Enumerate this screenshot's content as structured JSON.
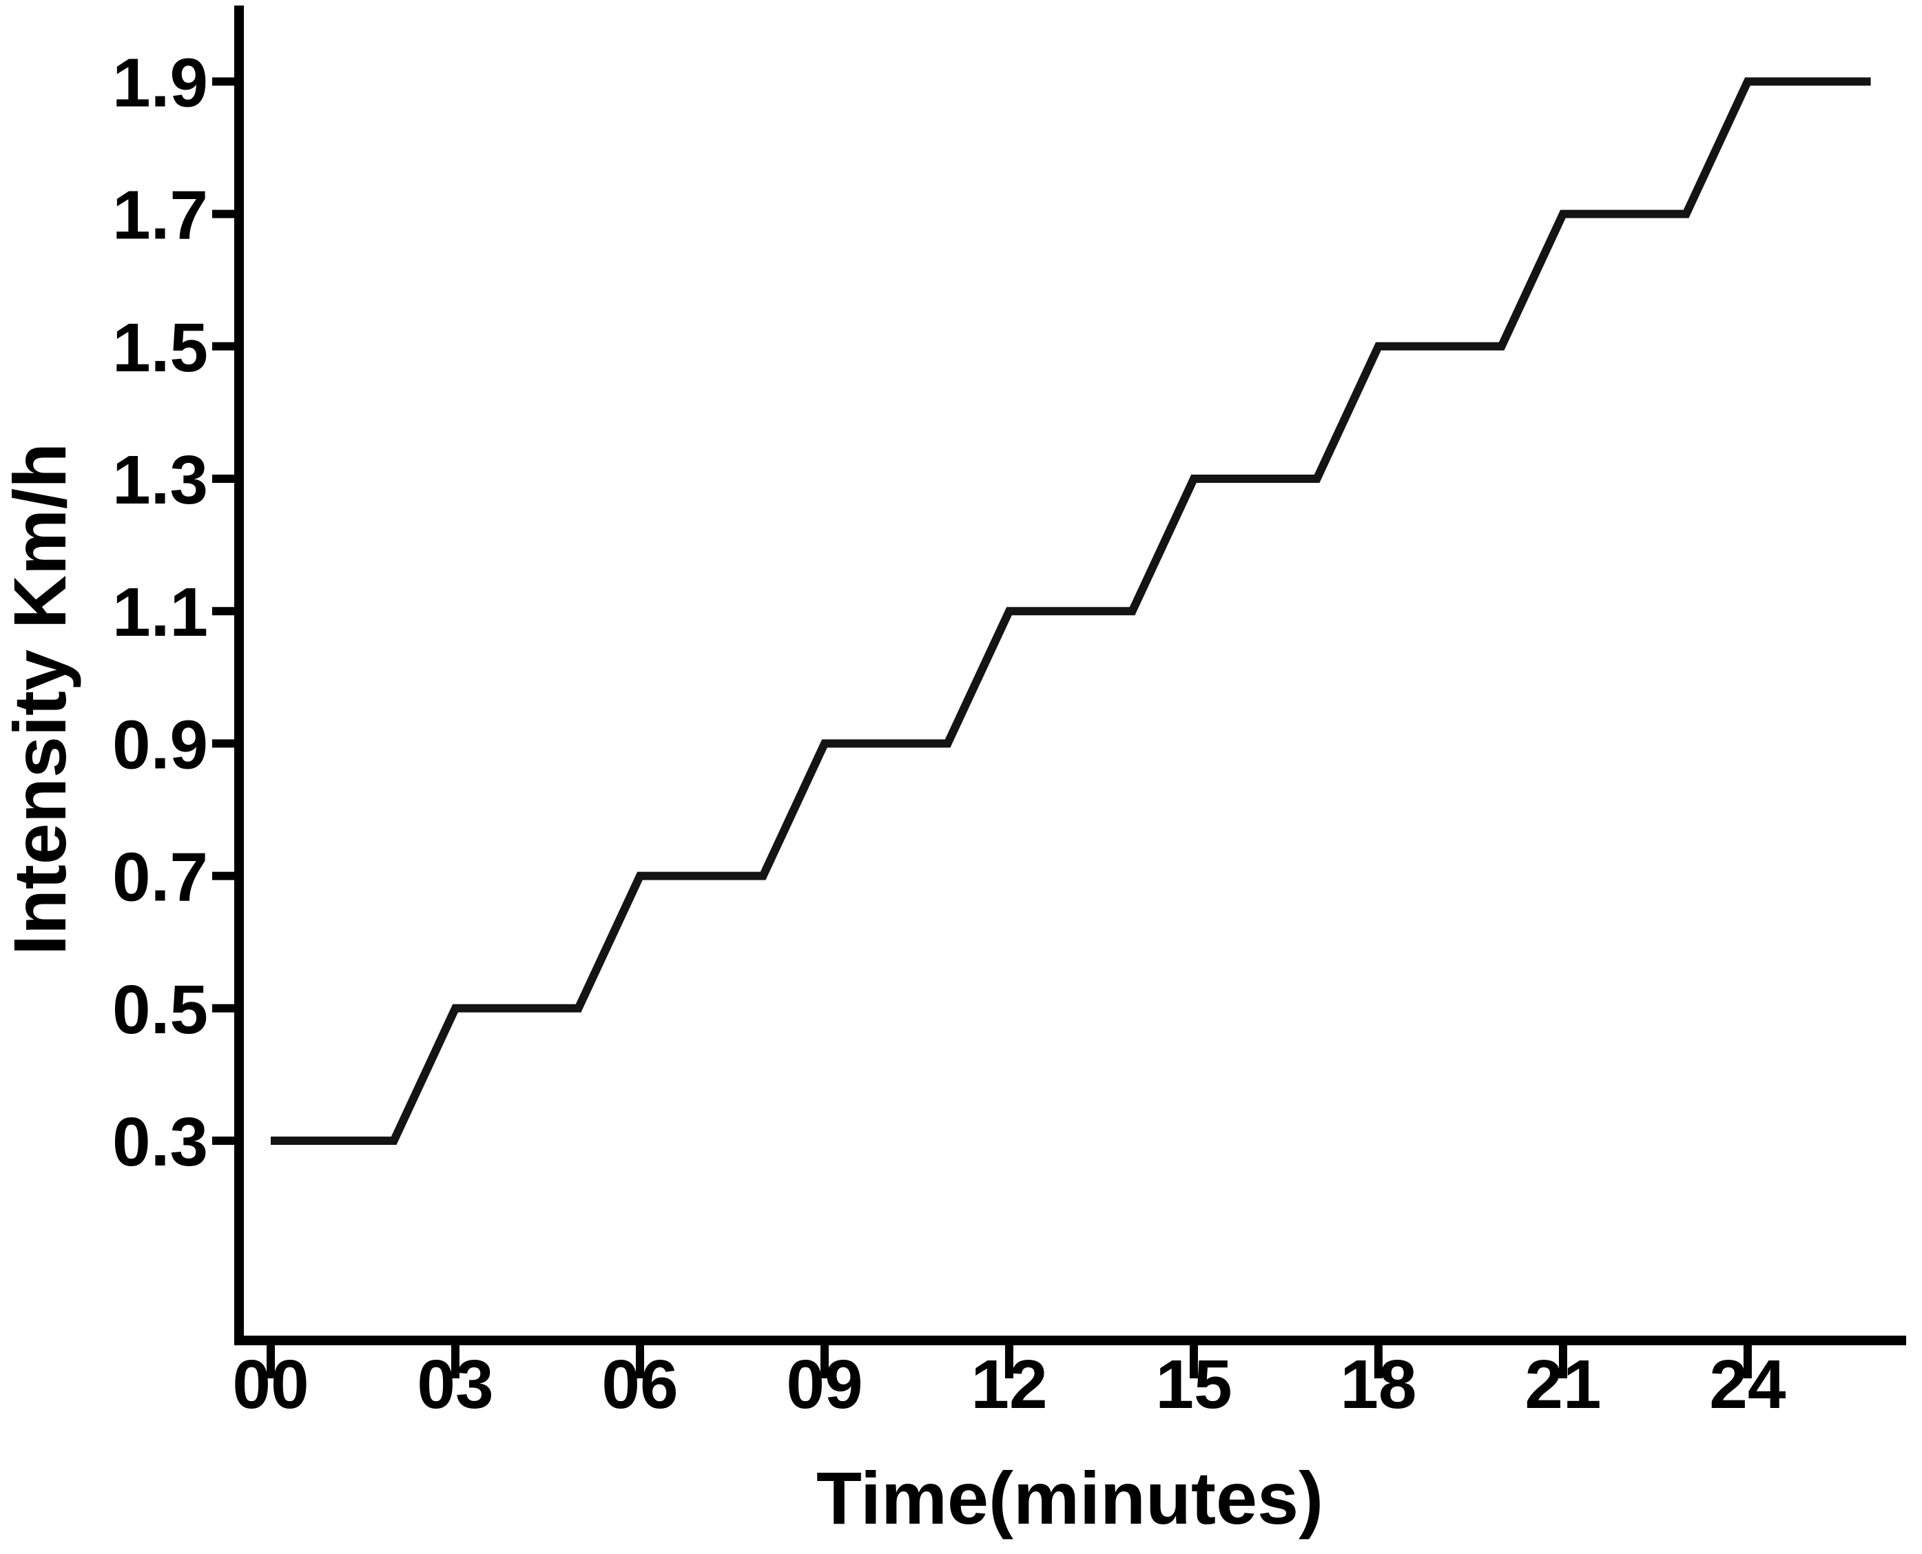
{
  "chart_data": {
    "type": "line",
    "subtype": "step-ramp-staircase",
    "title": "",
    "xlabel": "Time(minutes)",
    "ylabel": "Intensity Km/h",
    "x_ticks": [
      "00",
      "03",
      "06",
      "09",
      "12",
      "15",
      "18",
      "21",
      "24"
    ],
    "x_tick_values": [
      0,
      3,
      6,
      9,
      12,
      15,
      18,
      21,
      24
    ],
    "y_ticks": [
      "0.3",
      "0.5",
      "0.7",
      "0.9",
      "1.1",
      "1.3",
      "1.5",
      "1.7",
      "1.9"
    ],
    "y_tick_values": [
      0.3,
      0.5,
      0.7,
      0.9,
      1.1,
      1.3,
      1.5,
      1.7,
      1.9
    ],
    "xlim": [
      0,
      26.6
    ],
    "ylim": [
      0,
      2.02
    ],
    "grid": false,
    "legend": null,
    "background_color": "#ffffff",
    "axis_color": "#000000",
    "line_color": "#141414",
    "series": [
      {
        "name": "intensity",
        "points": [
          [
            0,
            0.3
          ],
          [
            2,
            0.3
          ],
          [
            3,
            0.5
          ],
          [
            5,
            0.5
          ],
          [
            6,
            0.7
          ],
          [
            8,
            0.7
          ],
          [
            9,
            0.9
          ],
          [
            11,
            0.9
          ],
          [
            12,
            1.1
          ],
          [
            14,
            1.1
          ],
          [
            15,
            1.3
          ],
          [
            17,
            1.3
          ],
          [
            18,
            1.5
          ],
          [
            20,
            1.5
          ],
          [
            21,
            1.7
          ],
          [
            23,
            1.7
          ],
          [
            24,
            1.9
          ],
          [
            26,
            1.9
          ]
        ]
      }
    ]
  }
}
